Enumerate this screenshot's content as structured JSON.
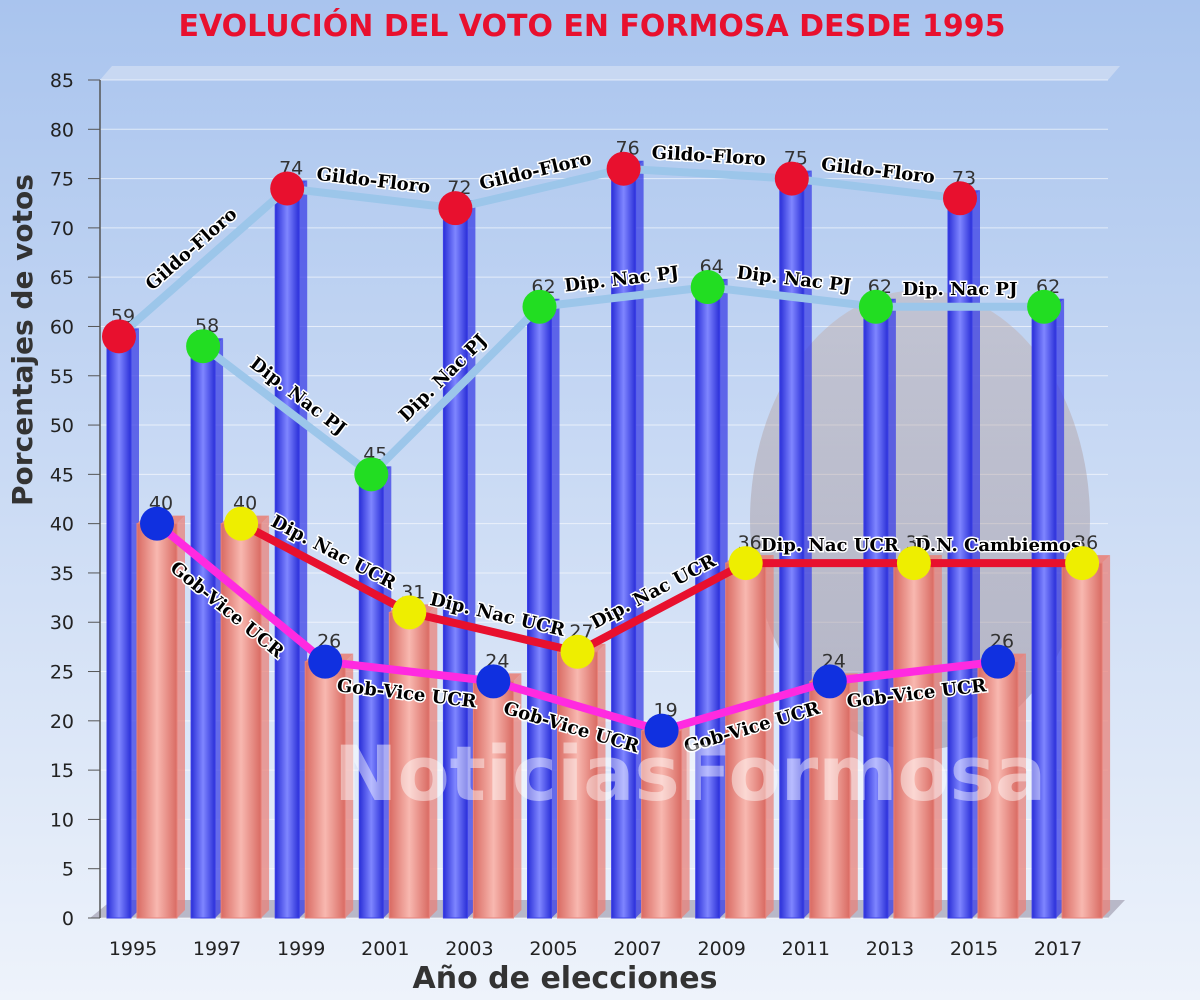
{
  "chart_data": {
    "type": "bar",
    "title": "EVOLUCIÓN DEL VOTO EN FORMOSA DESDE 1995",
    "xlabel": "Año de elecciones",
    "ylabel": "Porcentajes de votos",
    "watermark": "NoticiasFormosa",
    "categories": [
      "1995",
      "1997",
      "1999",
      "2001",
      "2003",
      "2005",
      "2007",
      "2009",
      "2011",
      "2013",
      "2015",
      "2017"
    ],
    "series": [
      {
        "color": "#3b3fe6",
        "values": [
          59,
          58,
          74,
          45,
          72,
          62,
          76,
          64,
          75,
          62,
          73,
          62
        ]
      },
      {
        "color": "#e8827a",
        "values": [
          40,
          40,
          26,
          31,
          24,
          27,
          19,
          36,
          24,
          36,
          26,
          36
        ]
      }
    ],
    "ylim": [
      0,
      85
    ],
    "yticks": [
      0,
      5,
      10,
      15,
      20,
      25,
      30,
      35,
      40,
      45,
      50,
      55,
      60,
      65,
      70,
      75,
      80,
      85
    ],
    "grid": true,
    "lines": [
      {
        "line_color": "#9cc6ea",
        "dot_color": "#e8102e",
        "x": [
          "1995",
          "1999",
          "2003",
          "2007",
          "2011",
          "2015"
        ],
        "values": [
          59,
          74,
          72,
          76,
          75,
          73
        ],
        "segment_labels": [
          "Gildo-Floro",
          "Gildo-Floro",
          "Gildo-Floro",
          "Gildo-Floro",
          "Gildo-Floro"
        ]
      },
      {
        "line_color": "#9cc6ea",
        "dot_color": "#22dd22",
        "x": [
          "1997",
          "2001",
          "2005",
          "2009",
          "2013",
          "2017"
        ],
        "values": [
          58,
          45,
          62,
          64,
          62,
          62
        ],
        "segment_labels": [
          "Dip. Nac PJ",
          "Dip. Nac PJ",
          "Dip. Nac PJ",
          "Dip. Nac PJ",
          "Dip. Nac PJ"
        ]
      },
      {
        "line_color": "#e8102e",
        "dot_color": "#eeee00",
        "x": [
          "1997",
          "2001",
          "2005",
          "2009",
          "2013",
          "2017"
        ],
        "values": [
          40,
          31,
          27,
          36,
          36,
          36
        ],
        "segment_labels": [
          "Dip. Nac UCR",
          "Dip. Nac UCR",
          "Dip. Nac UCR",
          "Dip. Nac UCR",
          "D.N. Cambiemos"
        ]
      },
      {
        "line_color": "#ff2ae0",
        "dot_color": "#1030e0",
        "x": [
          "1995",
          "1999",
          "2003",
          "2007",
          "2011",
          "2015"
        ],
        "values": [
          40,
          26,
          24,
          19,
          24,
          26
        ],
        "segment_labels": [
          "Gob-Vice UCR",
          "Gob-Vice UCR",
          "Gob-Vice UCR",
          "Gob-Vice UCR",
          "Gob-Vice UCR"
        ]
      }
    ]
  }
}
